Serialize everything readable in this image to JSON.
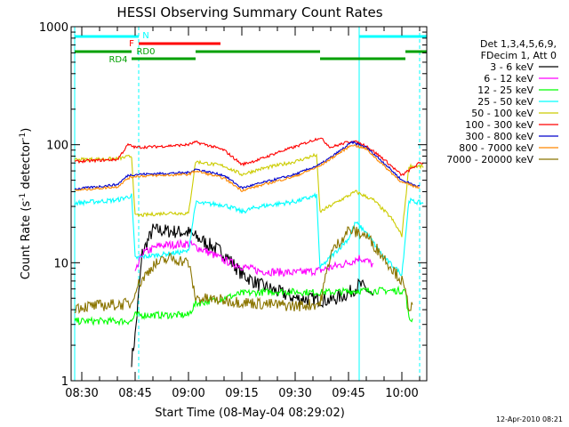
{
  "chart_data": {
    "type": "line",
    "title": "HESSI Observing Summary Count Rates",
    "xlabel": "Start Time (08-May-04 08:29:02)",
    "ylabel_main": "Count Rate (s",
    "ylabel_sup1": "-1",
    "ylabel_mid": " detector",
    "ylabel_sup2": "-1",
    "ylabel_end": ")",
    "y_scale": "log",
    "ylim": [
      1,
      1000
    ],
    "xlim": [
      "08:27",
      "10:07"
    ],
    "x_ticks": [
      "08:30",
      "08:45",
      "09:00",
      "09:15",
      "09:30",
      "09:45",
      "10:00"
    ],
    "y_ticks": [
      "1",
      "10",
      "100",
      "1000"
    ],
    "legend_header": [
      "Det 1,3,4,5,6,9,",
      "FDecim 1, Att 0"
    ],
    "grid": false,
    "series": [
      {
        "name": "3 - 6 keV",
        "color": "#000000",
        "x": [
          "08:44",
          "08:45",
          "08:47",
          "08:50",
          "09:00",
          "09:10",
          "09:15",
          "09:20",
          "09:30",
          "09:40",
          "09:45",
          "09:48",
          "09:50",
          "09:52"
        ],
        "y": [
          1.5,
          2.4,
          12,
          19,
          18,
          12,
          8,
          6.5,
          5,
          4.8,
          5.5,
          6.5,
          6,
          5
        ]
      },
      {
        "name": "6 - 12 keV",
        "color": "#ff00ff",
        "x": [
          "08:45",
          "08:47",
          "08:52",
          "09:00",
          "09:05",
          "09:10",
          "09:15",
          "09:20",
          "09:30",
          "09:37",
          "09:45",
          "09:48",
          "09:50",
          "09:52"
        ],
        "y": [
          8,
          12,
          14,
          14.5,
          12.5,
          10.5,
          9.3,
          8.5,
          8.2,
          8.6,
          10,
          11,
          10.5,
          9.5
        ]
      },
      {
        "name": "12 - 25 keV",
        "color": "#00ff00",
        "x": [
          "08:28",
          "08:44",
          "08:45",
          "09:00",
          "09:02",
          "09:10",
          "09:15",
          "09:25",
          "09:37",
          "09:44",
          "09:48",
          "10:01",
          "10:02",
          "10:03"
        ],
        "y": [
          3.2,
          3.2,
          3.6,
          3.6,
          4.5,
          5,
          5.5,
          5.7,
          5.6,
          5.7,
          5.8,
          5.8,
          3.3,
          3.3
        ]
      },
      {
        "name": "25 - 50 keV",
        "color": "#00ffff",
        "x": [
          "08:28",
          "08:40",
          "08:44",
          "08:45",
          "08:55",
          "09:00",
          "09:02",
          "09:10",
          "09:15",
          "09:20",
          "09:30",
          "09:36",
          "09:37",
          "09:45",
          "09:47",
          "09:50",
          "09:55",
          "10:00",
          "10:02",
          "10:03",
          "10:06"
        ],
        "y": [
          32,
          34,
          37,
          11,
          12,
          12.5,
          32,
          31,
          27,
          30,
          33,
          37,
          9,
          16,
          22,
          18,
          11,
          8,
          34,
          33,
          32
        ]
      },
      {
        "name": "50 - 100 keV",
        "color": "#cccc00",
        "x": [
          "08:28",
          "08:40",
          "08:44",
          "08:45",
          "08:55",
          "09:00",
          "09:02",
          "09:10",
          "09:15",
          "09:20",
          "09:30",
          "09:36",
          "09:37",
          "09:42",
          "09:47",
          "09:52",
          "09:57",
          "10:00",
          "10:02",
          "10:06"
        ],
        "y": [
          75,
          76,
          80,
          25,
          26.5,
          26,
          72,
          66,
          56,
          62,
          72,
          82,
          27,
          33,
          40,
          34,
          24,
          17,
          66,
          65
        ]
      },
      {
        "name": "100 - 300 keV",
        "color": "#ff0000",
        "x": [
          "08:28",
          "08:40",
          "08:43",
          "08:45",
          "08:50",
          "09:00",
          "09:02",
          "09:05",
          "09:10",
          "09:15",
          "09:20",
          "09:25",
          "09:30",
          "09:37",
          "09:40",
          "09:46",
          "09:50",
          "09:55",
          "10:00",
          "10:05",
          "10:06"
        ],
        "y": [
          72,
          75,
          100,
          95,
          96,
          100,
          105,
          100,
          90,
          68,
          75,
          86,
          96,
          115,
          95,
          108,
          98,
          75,
          55,
          70,
          70
        ]
      },
      {
        "name": "300 - 800 keV",
        "color": "#0000cc",
        "x": [
          "08:28",
          "08:40",
          "08:43",
          "08:45",
          "09:00",
          "09:02",
          "09:10",
          "09:15",
          "09:20",
          "09:30",
          "09:37",
          "09:40",
          "09:46",
          "09:50",
          "09:55",
          "10:00",
          "10:05"
        ],
        "y": [
          42,
          46,
          55,
          56,
          58,
          62,
          55,
          43,
          47,
          56,
          68,
          78,
          105,
          95,
          70,
          50,
          44
        ]
      },
      {
        "name": "800 - 7000 keV",
        "color": "#ff8800",
        "x": [
          "08:28",
          "08:40",
          "08:43",
          "08:45",
          "09:00",
          "09:02",
          "09:10",
          "09:15",
          "09:20",
          "09:30",
          "09:37",
          "09:40",
          "09:46",
          "09:50",
          "09:55",
          "10:00",
          "10:05"
        ],
        "y": [
          41,
          44,
          52,
          54,
          56,
          60,
          52,
          41,
          45,
          54,
          66,
          76,
          100,
          92,
          66,
          48,
          43
        ]
      },
      {
        "name": "7000 - 20000 keV",
        "color": "#8b7500",
        "x": [
          "08:28",
          "08:44",
          "08:45",
          "08:50",
          "08:55",
          "09:00",
          "09:02",
          "09:10",
          "09:20",
          "09:30",
          "09:37",
          "09:40",
          "09:45",
          "09:50",
          "09:55",
          "10:00",
          "10:02",
          "10:03"
        ],
        "y": [
          4.2,
          4.5,
          6,
          9.5,
          11,
          10,
          5,
          4.8,
          4.5,
          4.3,
          4.5,
          12,
          19,
          17,
          11,
          7,
          4.3,
          4.2
        ]
      }
    ],
    "bars": [
      {
        "label": "N",
        "color": "#00ffff",
        "level": 0,
        "segments": [
          [
            "08:28",
            "08:46"
          ],
          [
            "09:48",
            "10:07"
          ]
        ]
      },
      {
        "label": "F",
        "color": "#ff0000",
        "level": 1,
        "segments": [
          [
            "08:46",
            "09:09"
          ]
        ]
      },
      {
        "label": "RD0",
        "color": "#00a000",
        "level": 2,
        "segments": [
          [
            "08:28",
            "08:44"
          ],
          [
            "09:02",
            "09:37"
          ],
          [
            "10:01",
            "10:07"
          ]
        ]
      },
      {
        "label": "RD4",
        "color": "#00a000",
        "level": 3,
        "segments": [
          [
            "08:44",
            "09:02"
          ],
          [
            "09:37",
            "10:01"
          ]
        ]
      }
    ],
    "vlines_solid": [
      "08:28",
      "09:48"
    ],
    "vlines_dashed": [
      "08:46",
      "10:05"
    ]
  },
  "footer_timestamp": "12-Apr-2010 08:21"
}
